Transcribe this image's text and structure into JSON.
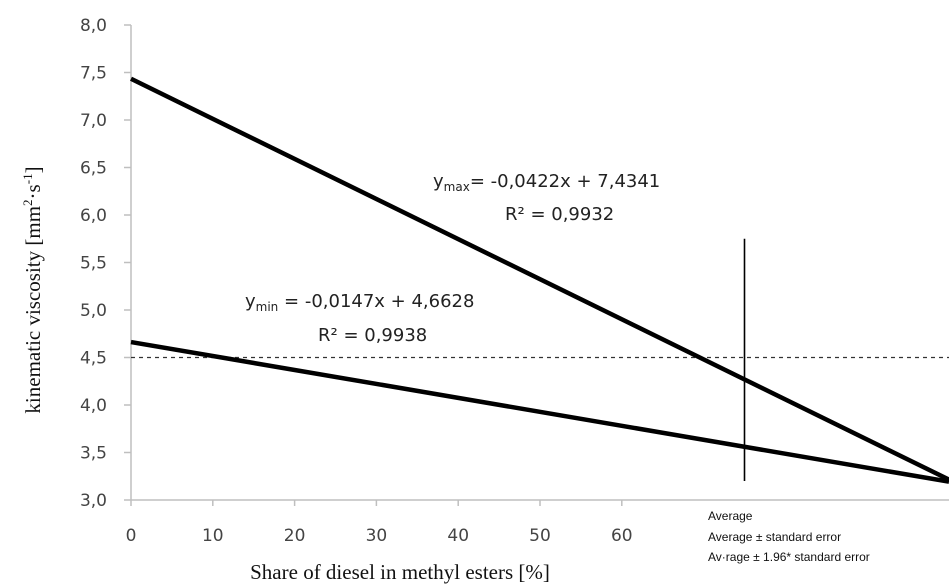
{
  "chart_data": {
    "type": "line",
    "title": "",
    "xlabel": "Share of diesel in methyl esters [%]",
    "ylabel_main": "kinematic viscosity [mm",
    "ylabel_sup1": "2",
    "ylabel_mid": "·s",
    "ylabel_sup2": "-1",
    "ylabel_end": "]",
    "xlim": [
      0,
      100
    ],
    "ylim": [
      3.0,
      8.0
    ],
    "x_ticks": [
      {
        "v": 0,
        "label": "0"
      },
      {
        "v": 10,
        "label": "10"
      },
      {
        "v": 20,
        "label": "20"
      },
      {
        "v": 30,
        "label": "30"
      },
      {
        "v": 40,
        "label": "40"
      },
      {
        "v": 50,
        "label": "50"
      },
      {
        "v": 60,
        "label": "60"
      }
    ],
    "y_ticks": [
      {
        "v": 3.0,
        "label": "3,0"
      },
      {
        "v": 3.5,
        "label": "3,5"
      },
      {
        "v": 4.0,
        "label": "4,0"
      },
      {
        "v": 4.5,
        "label": "4,5"
      },
      {
        "v": 5.0,
        "label": "5,0"
      },
      {
        "v": 5.5,
        "label": "5,5"
      },
      {
        "v": 6.0,
        "label": "6,0"
      },
      {
        "v": 6.5,
        "label": "6,5"
      },
      {
        "v": 7.0,
        "label": "7,0"
      },
      {
        "v": 7.5,
        "label": "7,5"
      },
      {
        "v": 8.0,
        "label": "8,0"
      }
    ],
    "series": [
      {
        "name": "ymax",
        "x": [
          0,
          100
        ],
        "y": [
          7.4341,
          3.2141
        ]
      },
      {
        "name": "ymin",
        "x": [
          0,
          100
        ],
        "y": [
          4.6628,
          3.1928
        ]
      }
    ],
    "reference_lines": {
      "horizontal": {
        "y": 4.5,
        "style": "dashed"
      },
      "vertical": {
        "x": 75,
        "y_range": [
          3.2,
          5.75
        ],
        "style": "solid"
      }
    },
    "annotations": {
      "ymax_eq": {
        "y": "y",
        "sub": "max",
        "rest": "= -0,0422x + 7,4341",
        "r2": "R² = 0,9932"
      },
      "ymin_eq": {
        "y": "y",
        "sub": "min",
        "rest": " = -0,0147x + 4,6628",
        "r2": "R² = 0,9938"
      }
    },
    "legend": {
      "position": "bottom-right",
      "items": [
        "Average",
        "Average ± standard error",
        "Av·rage ± 1.96* standard error"
      ]
    },
    "colors": {
      "line": "#000000",
      "axis": "#bfbfbf",
      "tick_text": "#444444"
    }
  }
}
